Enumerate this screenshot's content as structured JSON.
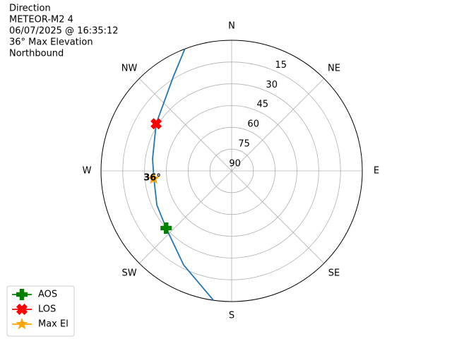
{
  "chart_data": {
    "type": "polar",
    "title_lines": [
      "Direction",
      "METEOR-M2 4",
      "06/07/2025 @ 16:35:12",
      "36° Max Elevation",
      "Northbound"
    ],
    "theta_direction": "clockwise",
    "theta_zero": "N",
    "xticks": [
      {
        "value": 0,
        "label": "N"
      },
      {
        "value": 45,
        "label": "NE"
      },
      {
        "value": 90,
        "label": "E"
      },
      {
        "value": 135,
        "label": "SE"
      },
      {
        "value": 180,
        "label": "S"
      },
      {
        "value": 225,
        "label": "SW"
      },
      {
        "value": 270,
        "label": "W"
      },
      {
        "value": 315,
        "label": "NW"
      }
    ],
    "ylim": [
      90,
      0
    ],
    "yticks": [
      15,
      30,
      45,
      60,
      75,
      90
    ],
    "grid": true,
    "legend": "lower left",
    "series": [
      {
        "color": "#1f77b4",
        "marker": "line",
        "x": [
          339,
          327.8,
          302,
          278.6,
          264.3,
          245.6,
          228.9,
          207.1,
          188
        ],
        "values": [
          0,
          14.1,
          28.7,
          34.9,
          36.2,
          33.4,
          30.1,
          17.3,
          0
        ]
      },
      {
        "name": "AOS",
        "color": "#008000",
        "marker": "plus",
        "x": [
          228.9
        ],
        "values": [
          30.1
        ]
      },
      {
        "name": "LOS",
        "color": "#ff0000",
        "marker": "x",
        "x": [
          302
        ],
        "values": [
          28.7
        ]
      },
      {
        "name": "Max El",
        "color": "#ffa500",
        "marker": "star",
        "x": [
          264.3
        ],
        "values": [
          36
        ],
        "value_labels": [
          "36°"
        ]
      }
    ]
  }
}
